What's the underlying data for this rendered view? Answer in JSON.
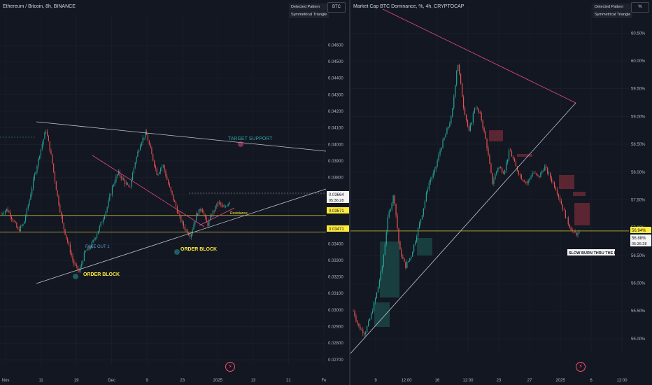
{
  "left": {
    "title": "Ethereum / Bitcoin, 8h, BINANCE",
    "pattern_label": "Detected Pattern",
    "pattern_name": "Symmetrical Triangle",
    "symbol_button": "BTC",
    "annotations": {
      "order_block_1": "ORDER BLOCK",
      "order_block_2": "ORDER BLOCK",
      "target_support": "TARGET SUPPORT",
      "fake_out": "FAKE OUT 1",
      "resistance": "Resistance"
    },
    "price_tags": {
      "last": "0.03664",
      "countdown": "05:36:28",
      "line1": "0.03571",
      "line2": "0.03471"
    },
    "chart_data": {
      "type": "candlestick",
      "y_ticks": [
        "0.04600",
        "0.04500",
        "0.04400",
        "0.04300",
        "0.04200",
        "0.04100",
        "0.04000",
        "0.03900",
        "0.03800",
        "0.03700",
        "0.03600",
        "0.03500",
        "0.03400",
        "0.03300",
        "0.03200",
        "0.03100",
        "0.03000",
        "0.02900",
        "0.02800",
        "0.02700"
      ],
      "x_ticks": [
        "Nov",
        "11",
        "19",
        "Dec",
        "9",
        "23",
        "2025",
        "13",
        "21",
        "Fe"
      ],
      "ylim": [
        0.0267,
        0.0469
      ],
      "close_path": [
        0.0358,
        0.0361,
        0.0355,
        0.0348,
        0.0352,
        0.0366,
        0.0382,
        0.0396,
        0.0409,
        0.0392,
        0.037,
        0.0352,
        0.034,
        0.0328,
        0.0323,
        0.0335,
        0.0338,
        0.0345,
        0.0353,
        0.0362,
        0.0375,
        0.0383,
        0.0378,
        0.0373,
        0.0389,
        0.0401,
        0.0407,
        0.0394,
        0.0382,
        0.0388,
        0.0376,
        0.0366,
        0.0356,
        0.0349,
        0.0345,
        0.0357,
        0.0362,
        0.0351,
        0.0359,
        0.0365,
        0.0361,
        0.0366
      ],
      "horizontal_levels": [
        0.03571,
        0.03471
      ],
      "last_price": 0.03664
    }
  },
  "right": {
    "title": "Market Cap BTC Dominance, %, 4h, CRYPTOCAP",
    "pattern_label": "Detected Pattern",
    "pattern_name": "Symmetrical Triangle",
    "symbol_button": "%",
    "annotations": {
      "slow_burn": "SLOW BURN THRU THE FVG"
    },
    "price_tags": {
      "line": "56.94%",
      "last": "56.88%",
      "countdown": "05:36:28"
    },
    "chart_data": {
      "type": "candlestick",
      "y_ticks": [
        "60.50%",
        "60.00%",
        "59.50%",
        "59.00%",
        "58.50%",
        "58.00%",
        "57.50%",
        "57.00%",
        "56.50%",
        "56.00%",
        "55.50%",
        "55.00%"
      ],
      "x_ticks": [
        "9",
        "12:00",
        "16",
        "12:00",
        "23",
        "27",
        "2025",
        "6",
        "12:00"
      ],
      "ylim": [
        54.76,
        60.73
      ],
      "close_path": [
        55.5,
        55.2,
        55.1,
        55.4,
        55.8,
        56.3,
        57.2,
        57.6,
        56.6,
        56.3,
        56.5,
        56.9,
        57.3,
        57.8,
        58.0,
        58.4,
        58.7,
        59.0,
        60.0,
        59.2,
        58.7,
        59.2,
        59.0,
        58.5,
        57.8,
        58.1,
        58.0,
        58.4,
        58.1,
        57.9,
        57.8,
        58.0,
        57.9,
        58.1,
        57.9,
        57.7,
        57.4,
        57.1,
        56.9,
        56.88
      ],
      "horizontal_levels": [
        56.94
      ],
      "last_price": 56.88
    }
  }
}
